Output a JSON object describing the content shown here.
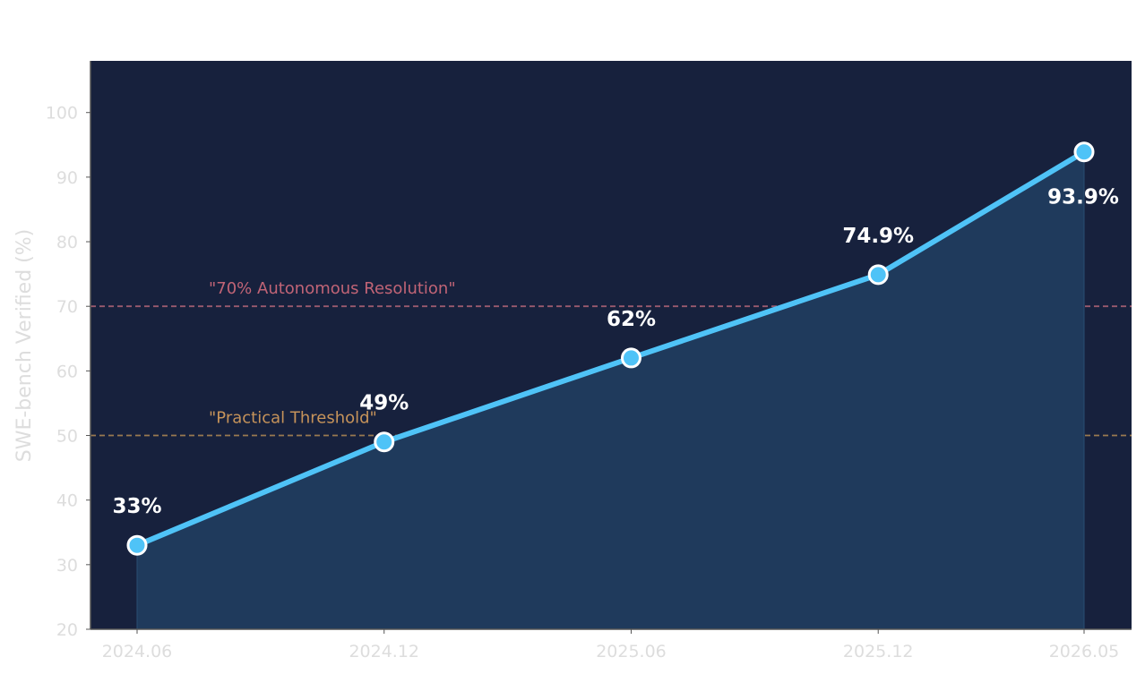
{
  "chart_data": {
    "type": "area",
    "x": [
      "2024.06",
      "2024.12",
      "2025.06",
      "2025.12",
      "2026.05"
    ],
    "x_months": [
      0,
      6,
      12,
      18,
      23
    ],
    "series": [
      {
        "values": [
          33,
          49,
          62,
          74.9,
          93.9
        ],
        "data_labels": [
          "33%",
          "49%",
          "62%",
          "74.9%",
          "93.9%"
        ]
      }
    ],
    "title": "",
    "xlabel": "",
    "ylabel": "SWE-bench Verified (%)",
    "ylim": [
      20,
      108
    ],
    "yticks": [
      20,
      30,
      40,
      50,
      60,
      70,
      80,
      90,
      100
    ],
    "grid": false,
    "legend": "none",
    "reference_lines": [
      {
        "value": 70,
        "label": "\"70% Autonomous Resolution\"",
        "color": "#9a5a6e"
      },
      {
        "value": 50,
        "label": "\"Practical Threshold\"",
        "color": "#9a7a50"
      }
    ],
    "reference_label_colors": [
      "#c16476",
      "#c6935a"
    ],
    "colors": {
      "plot_background": "#17213d",
      "fill": "#1f3a5c",
      "line": "#4fc3f7",
      "marker_edge": "#ffffff",
      "data_label": "#ffffff",
      "axis_text": "#dddddd",
      "spine": "#555555"
    }
  }
}
